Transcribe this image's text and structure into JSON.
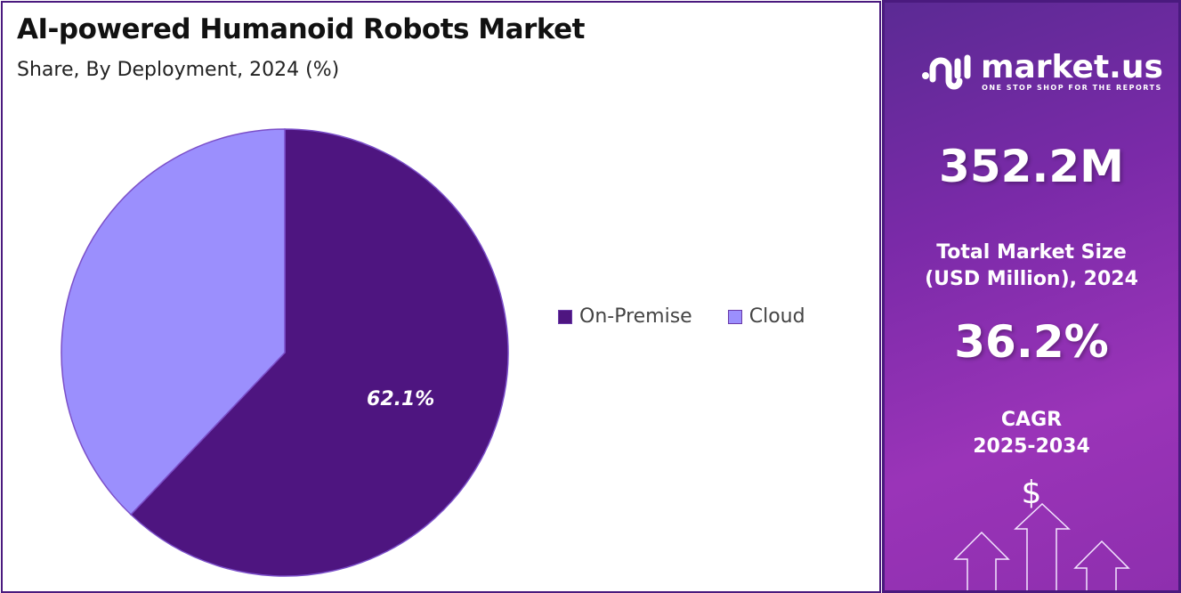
{
  "chart_data": {
    "type": "pie",
    "title": "AI-powered Humanoid Robots Market",
    "subtitle": "Share, By Deployment, 2024 (%)",
    "categories": [
      "On-Premise",
      "Cloud"
    ],
    "values": [
      62.1,
      37.9
    ],
    "colors": [
      "#4e1580",
      "#9b8ffd"
    ],
    "data_labels": [
      "62.1%",
      ""
    ],
    "legend_position": "right"
  },
  "sidebar": {
    "brand": "market.us",
    "tagline": "ONE STOP SHOP FOR THE REPORTS",
    "market_size": "352.2M",
    "market_size_label_1": "Total Market Size",
    "market_size_label_2": "(USD Million), 2024",
    "cagr": "36.2%",
    "cagr_label_1": "CAGR",
    "cagr_label_2": "2025-2034",
    "dollar": "$"
  }
}
